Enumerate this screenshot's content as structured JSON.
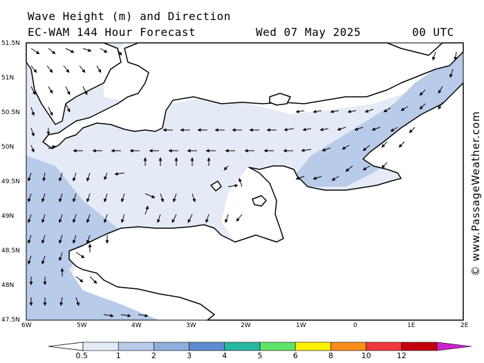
{
  "header": {
    "title": "Wave Height (m) and Direction",
    "model": "EC-WAM 144 Hour Forecast",
    "date": "Wed 07 May 2025",
    "time": "00 UTC"
  },
  "axes": {
    "lat_labels": [
      "51.5N",
      "51N",
      "50.5N",
      "50N",
      "49.5N",
      "49N",
      "48.5N",
      "48N",
      "47.5N"
    ],
    "lon_labels": [
      "6W",
      "5W",
      "4W",
      "3W",
      "2W",
      "1W",
      "0",
      "1E",
      "2E"
    ]
  },
  "legend": {
    "levels": [
      "0.5",
      "1",
      "2",
      "3",
      "4",
      "5",
      "6",
      "8",
      "10",
      "12"
    ],
    "colors": [
      "#e4ebf7",
      "#b8cbe8",
      "#8eaedb",
      "#5e8cd0",
      "#27b8a4",
      "#5ee36a",
      "#fff000",
      "#ff8c1a",
      "#f0383e",
      "#c4000f",
      "#cc22cc"
    ]
  },
  "wave_colors": {
    "below_0_5": "#ffffff",
    "from_0_5": "#e4ebf7",
    "from_1": "#b8cbe8"
  },
  "credit": "© www.PassageWeather.com"
}
